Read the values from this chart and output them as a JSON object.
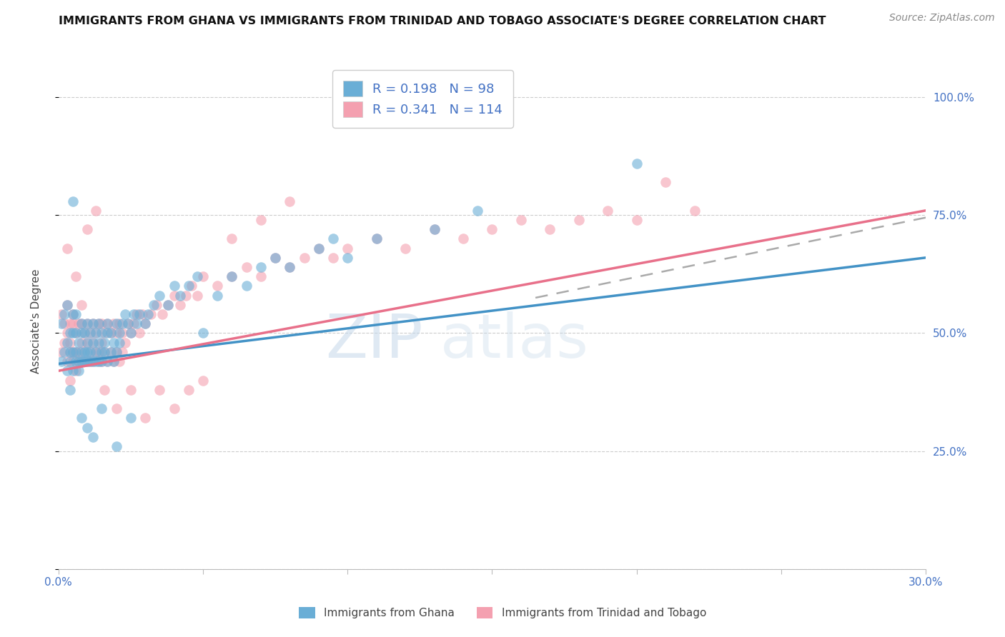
{
  "title": "IMMIGRANTS FROM GHANA VS IMMIGRANTS FROM TRINIDAD AND TOBAGO ASSOCIATE'S DEGREE CORRELATION CHART",
  "source": "Source: ZipAtlas.com",
  "ylabel": "Associate's Degree",
  "watermark": "ZIPatlas",
  "xlim": [
    0.0,
    0.3
  ],
  "ylim": [
    0.0,
    1.05
  ],
  "xticks": [
    0.0,
    0.05,
    0.1,
    0.15,
    0.2,
    0.25,
    0.3
  ],
  "xtick_labels": [
    "0.0%",
    "",
    "",
    "",
    "",
    "",
    "30.0%"
  ],
  "ytick_labels": [
    "",
    "25.0%",
    "50.0%",
    "75.0%",
    "100.0%"
  ],
  "yticks": [
    0.0,
    0.25,
    0.5,
    0.75,
    1.0
  ],
  "ghana_R": 0.198,
  "ghana_N": 98,
  "trinidad_R": 0.341,
  "trinidad_N": 114,
  "ghana_color": "#6aaed6",
  "trinidad_color": "#f4a0b0",
  "ghana_line_color": "#4292c6",
  "trinidad_line_color": "#e8708a",
  "legend_label_ghana": "Immigrants from Ghana",
  "legend_label_trinidad": "Immigrants from Trinidad and Tobago",
  "ghana_scatter_x": [
    0.001,
    0.001,
    0.002,
    0.002,
    0.003,
    0.003,
    0.003,
    0.004,
    0.004,
    0.004,
    0.004,
    0.005,
    0.005,
    0.005,
    0.005,
    0.006,
    0.006,
    0.006,
    0.006,
    0.007,
    0.007,
    0.007,
    0.008,
    0.008,
    0.008,
    0.008,
    0.009,
    0.009,
    0.009,
    0.01,
    0.01,
    0.01,
    0.01,
    0.011,
    0.011,
    0.011,
    0.012,
    0.012,
    0.012,
    0.013,
    0.013,
    0.013,
    0.014,
    0.014,
    0.014,
    0.015,
    0.015,
    0.015,
    0.016,
    0.016,
    0.017,
    0.017,
    0.017,
    0.018,
    0.018,
    0.019,
    0.019,
    0.02,
    0.02,
    0.021,
    0.021,
    0.022,
    0.023,
    0.024,
    0.025,
    0.026,
    0.027,
    0.028,
    0.03,
    0.031,
    0.033,
    0.035,
    0.038,
    0.04,
    0.042,
    0.045,
    0.048,
    0.05,
    0.055,
    0.06,
    0.065,
    0.07,
    0.075,
    0.08,
    0.09,
    0.095,
    0.1,
    0.11,
    0.13,
    0.145,
    0.005,
    0.008,
    0.01,
    0.012,
    0.015,
    0.02,
    0.025,
    0.2
  ],
  "ghana_scatter_y": [
    0.44,
    0.52,
    0.46,
    0.54,
    0.48,
    0.42,
    0.56,
    0.38,
    0.46,
    0.5,
    0.44,
    0.42,
    0.5,
    0.46,
    0.54,
    0.44,
    0.5,
    0.46,
    0.54,
    0.42,
    0.48,
    0.44,
    0.46,
    0.5,
    0.44,
    0.52,
    0.44,
    0.5,
    0.46,
    0.48,
    0.44,
    0.52,
    0.46,
    0.44,
    0.5,
    0.46,
    0.48,
    0.44,
    0.52,
    0.46,
    0.5,
    0.44,
    0.48,
    0.44,
    0.52,
    0.46,
    0.5,
    0.44,
    0.48,
    0.46,
    0.5,
    0.44,
    0.52,
    0.46,
    0.5,
    0.48,
    0.44,
    0.52,
    0.46,
    0.5,
    0.48,
    0.52,
    0.54,
    0.52,
    0.5,
    0.54,
    0.52,
    0.54,
    0.52,
    0.54,
    0.56,
    0.58,
    0.56,
    0.6,
    0.58,
    0.6,
    0.62,
    0.5,
    0.58,
    0.62,
    0.6,
    0.64,
    0.66,
    0.64,
    0.68,
    0.7,
    0.66,
    0.7,
    0.72,
    0.76,
    0.78,
    0.32,
    0.3,
    0.28,
    0.34,
    0.26,
    0.32,
    0.86
  ],
  "trinidad_scatter_x": [
    0.001,
    0.001,
    0.002,
    0.002,
    0.003,
    0.003,
    0.003,
    0.004,
    0.004,
    0.004,
    0.004,
    0.005,
    0.005,
    0.005,
    0.005,
    0.006,
    0.006,
    0.006,
    0.007,
    0.007,
    0.007,
    0.008,
    0.008,
    0.008,
    0.009,
    0.009,
    0.009,
    0.01,
    0.01,
    0.01,
    0.011,
    0.011,
    0.011,
    0.012,
    0.012,
    0.012,
    0.013,
    0.013,
    0.014,
    0.014,
    0.014,
    0.015,
    0.015,
    0.015,
    0.016,
    0.016,
    0.017,
    0.017,
    0.018,
    0.018,
    0.019,
    0.019,
    0.02,
    0.02,
    0.021,
    0.021,
    0.022,
    0.022,
    0.023,
    0.024,
    0.025,
    0.026,
    0.027,
    0.028,
    0.029,
    0.03,
    0.032,
    0.034,
    0.036,
    0.038,
    0.04,
    0.042,
    0.044,
    0.046,
    0.048,
    0.05,
    0.055,
    0.06,
    0.065,
    0.07,
    0.075,
    0.08,
    0.085,
    0.09,
    0.095,
    0.1,
    0.11,
    0.12,
    0.13,
    0.14,
    0.15,
    0.16,
    0.17,
    0.18,
    0.19,
    0.2,
    0.21,
    0.22,
    0.003,
    0.006,
    0.008,
    0.01,
    0.013,
    0.016,
    0.02,
    0.025,
    0.03,
    0.035,
    0.04,
    0.045,
    0.05,
    0.06,
    0.07,
    0.08
  ],
  "trinidad_scatter_y": [
    0.46,
    0.54,
    0.48,
    0.52,
    0.44,
    0.5,
    0.56,
    0.4,
    0.46,
    0.52,
    0.48,
    0.44,
    0.52,
    0.46,
    0.54,
    0.42,
    0.5,
    0.46,
    0.44,
    0.52,
    0.46,
    0.48,
    0.44,
    0.52,
    0.46,
    0.5,
    0.44,
    0.48,
    0.44,
    0.52,
    0.46,
    0.5,
    0.44,
    0.48,
    0.44,
    0.52,
    0.46,
    0.5,
    0.44,
    0.52,
    0.46,
    0.48,
    0.44,
    0.52,
    0.46,
    0.5,
    0.44,
    0.52,
    0.46,
    0.5,
    0.44,
    0.52,
    0.46,
    0.5,
    0.44,
    0.52,
    0.46,
    0.5,
    0.48,
    0.52,
    0.5,
    0.52,
    0.54,
    0.5,
    0.54,
    0.52,
    0.54,
    0.56,
    0.54,
    0.56,
    0.58,
    0.56,
    0.58,
    0.6,
    0.58,
    0.62,
    0.6,
    0.62,
    0.64,
    0.62,
    0.66,
    0.64,
    0.66,
    0.68,
    0.66,
    0.68,
    0.7,
    0.68,
    0.72,
    0.7,
    0.72,
    0.74,
    0.72,
    0.74,
    0.76,
    0.74,
    0.82,
    0.76,
    0.68,
    0.62,
    0.56,
    0.72,
    0.76,
    0.38,
    0.34,
    0.38,
    0.32,
    0.38,
    0.34,
    0.38,
    0.4,
    0.7,
    0.74,
    0.78
  ],
  "ghana_line_x": [
    0.0,
    0.3
  ],
  "ghana_line_y": [
    0.435,
    0.66
  ],
  "trinidad_line_x": [
    0.0,
    0.3
  ],
  "trinidad_line_y": [
    0.42,
    0.76
  ],
  "dash_line_x": [
    0.165,
    0.3
  ],
  "dash_line_y": [
    0.575,
    0.745
  ]
}
